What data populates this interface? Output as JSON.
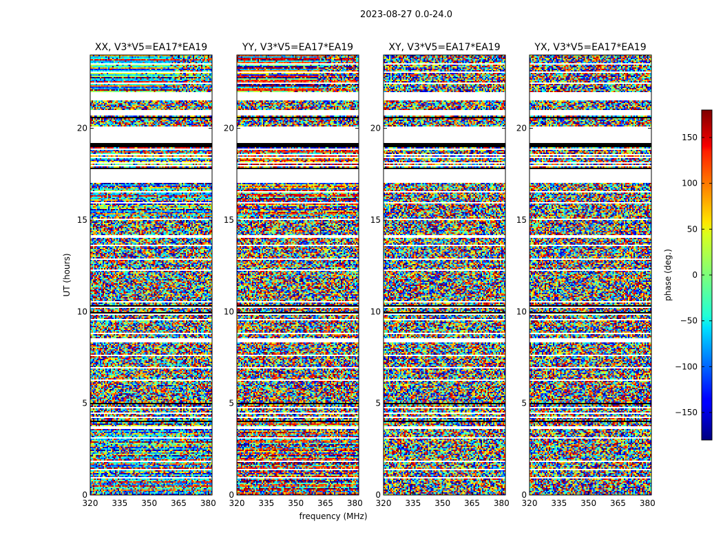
{
  "chart_data": {
    "type": "heatmap",
    "suptitle": "2023-08-27 0.0-24.0",
    "xlabel": "frequency (MHz)",
    "ylabel": "UT (hours)",
    "xlim": [
      320,
      382
    ],
    "ylim": [
      0,
      24
    ],
    "xticks": [
      320,
      335,
      350,
      365,
      380
    ],
    "yticks": [
      0,
      5,
      10,
      15,
      20
    ],
    "colorbar": {
      "label": "phase (deg.)",
      "range": [
        -180,
        180
      ],
      "ticks": [
        -150,
        -100,
        -50,
        0,
        50,
        100,
        150
      ],
      "tick_labels": [
        "−150",
        "−100",
        "−50",
        "0",
        "50",
        "100",
        "150"
      ],
      "colormap": "jet"
    },
    "panels": [
      {
        "name": "XX",
        "title": "XX, V3*V5=EA17*EA19"
      },
      {
        "name": "YY",
        "title": "YY, V3*V5=EA17*EA19"
      },
      {
        "name": "XY",
        "title": "XY, V3*V5=EA17*EA19"
      },
      {
        "name": "YX",
        "title": "YX, V3*V5=EA17*EA19"
      }
    ],
    "flagged_ut_ranges": [
      [
        0.9,
        0.97
      ],
      [
        1.38,
        1.45
      ],
      [
        1.8,
        1.86
      ],
      [
        2.15,
        2.2
      ],
      [
        3.1,
        3.16
      ],
      [
        3.6,
        3.78
      ],
      [
        4.22,
        4.28
      ],
      [
        4.45,
        4.52
      ],
      [
        4.74,
        4.8
      ],
      [
        5.02,
        5.06
      ],
      [
        6.2,
        6.32
      ],
      [
        6.9,
        6.96
      ],
      [
        7.4,
        7.46
      ],
      [
        7.6,
        7.66
      ],
      [
        8.3,
        8.52
      ],
      [
        8.78,
        8.86
      ],
      [
        9.55,
        9.6
      ],
      [
        9.85,
        9.9
      ],
      [
        10.2,
        10.26
      ],
      [
        10.5,
        10.56
      ],
      [
        11.3,
        11.36
      ],
      [
        12.25,
        12.32
      ],
      [
        12.82,
        12.88
      ],
      [
        13.55,
        13.62
      ],
      [
        14.0,
        14.15
      ],
      [
        14.98,
        15.04
      ],
      [
        15.5,
        15.56
      ],
      [
        15.9,
        15.96
      ],
      [
        16.1,
        16.16
      ],
      [
        16.5,
        16.56
      ],
      [
        17.05,
        17.75
      ],
      [
        17.9,
        18.0
      ],
      [
        18.1,
        18.16
      ],
      [
        18.35,
        18.42
      ],
      [
        18.55,
        18.6
      ],
      [
        18.82,
        18.9
      ],
      [
        19.2,
        20.1
      ],
      [
        20.7,
        21.0
      ],
      [
        21.55,
        22.0
      ],
      [
        22.45,
        22.5
      ],
      [
        23.05,
        23.1
      ],
      [
        23.5,
        23.56
      ]
    ],
    "black_ut_ranges": [
      [
        0.04,
        0.07
      ],
      [
        3.42,
        3.46
      ],
      [
        4.0,
        4.03
      ],
      [
        4.98,
        5.01
      ],
      [
        8.62,
        8.65
      ],
      [
        9.92,
        9.95
      ],
      [
        10.3,
        10.33
      ],
      [
        10.62,
        10.66
      ],
      [
        11.62,
        11.65
      ],
      [
        12.15,
        12.18
      ],
      [
        15.22,
        15.25
      ],
      [
        17.78,
        17.82
      ],
      [
        18.95,
        19.2
      ],
      [
        20.55,
        20.6
      ],
      [
        22.25,
        22.28
      ]
    ]
  }
}
